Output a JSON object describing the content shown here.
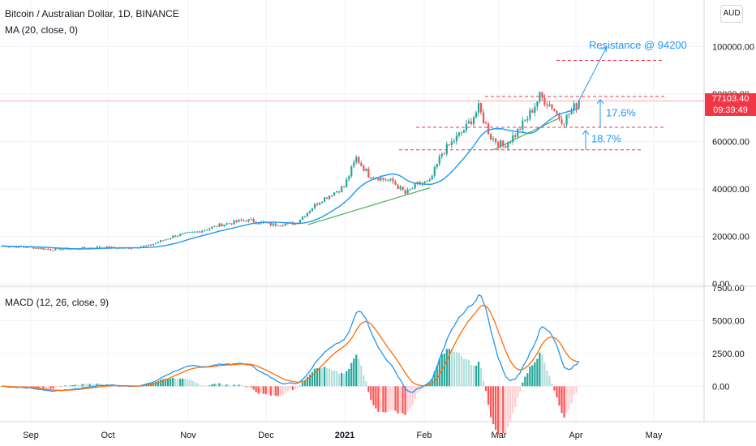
{
  "header": {
    "symbol_title": "Bitcoin / Australian Dollar, 1D, BINANCE",
    "ma_legend": "MA (20, close, 0)",
    "macd_legend": "MACD (12, 26, close, 9)",
    "currency": "AUD"
  },
  "last_price": {
    "value": "77103.40",
    "countdown": "09:39:49",
    "price": 77103.4
  },
  "annotations": {
    "resistance_label": "Resistance @ 94200",
    "pct_upper": "17.6%",
    "pct_lower": "18.7%"
  },
  "colors": {
    "up": "#26a69a",
    "down": "#ef5350",
    "ma": "#2196f3",
    "signal": "#ff6d00",
    "hist_up_strong": "#26a69a",
    "hist_up_weak": "#b2dfdb",
    "hist_down_strong": "#ff5252",
    "hist_down_weak": "#ffcdd2",
    "trend": "#4caf50",
    "level": "#f23645",
    "annotation": "#2196f3"
  },
  "chart_data": [
    {
      "type": "candlestick",
      "title": "Bitcoin / Australian Dollar, 1D, BINANCE",
      "x_ticks": [
        "Sep",
        "Oct",
        "Nov",
        "Dec",
        "2021",
        "Feb",
        "Mar",
        "Apr",
        "May"
      ],
      "y_ticks": [
        "0.00",
        "20000.00",
        "40000.00",
        "60000.00",
        "80000.00",
        "100000.00"
      ],
      "ylim": [
        0,
        106000
      ],
      "close_anchors": [
        [
          0,
          16000
        ],
        [
          10,
          15500
        ],
        [
          20,
          14500
        ],
        [
          30,
          14800
        ],
        [
          40,
          15500
        ],
        [
          50,
          15000
        ],
        [
          60,
          16000
        ],
        [
          70,
          20000
        ],
        [
          80,
          22000
        ],
        [
          90,
          25000
        ],
        [
          100,
          27000
        ],
        [
          110,
          25000
        ],
        [
          120,
          25500
        ],
        [
          130,
          35000
        ],
        [
          140,
          41000
        ],
        [
          145,
          53000
        ],
        [
          150,
          46000
        ],
        [
          160,
          43000
        ],
        [
          165,
          38000
        ],
        [
          170,
          42000
        ],
        [
          175,
          43000
        ],
        [
          180,
          55000
        ],
        [
          190,
          66000
        ],
        [
          195,
          74000
        ],
        [
          200,
          62000
        ],
        [
          205,
          58000
        ],
        [
          210,
          63000
        ],
        [
          215,
          70000
        ],
        [
          220,
          79000
        ],
        [
          225,
          75000
        ],
        [
          228,
          70000
        ],
        [
          230,
          69000
        ],
        [
          233,
          73000
        ],
        [
          236,
          77100
        ]
      ],
      "levels": [
        94200,
        79000,
        66000,
        56500
      ],
      "annotation_labels": [
        "Resistance @ 94200",
        "17.6%",
        "18.7%"
      ],
      "series": [
        {
          "name": "MA (20, close, 0)",
          "type": "line"
        }
      ]
    },
    {
      "type": "line",
      "title": "MACD (12, 26, close, 9)",
      "x_ticks": [
        "Sep",
        "Oct",
        "Nov",
        "Dec",
        "2021",
        "Feb",
        "Mar",
        "Apr",
        "May"
      ],
      "y_ticks": [
        "0.00",
        "2500.00",
        "5000.00",
        "7500.00"
      ],
      "ylim": [
        -2700,
        7500
      ],
      "series": [
        {
          "name": "MACD",
          "type": "line"
        },
        {
          "name": "Signal",
          "type": "line"
        },
        {
          "name": "Histogram",
          "type": "bar"
        }
      ]
    }
  ]
}
